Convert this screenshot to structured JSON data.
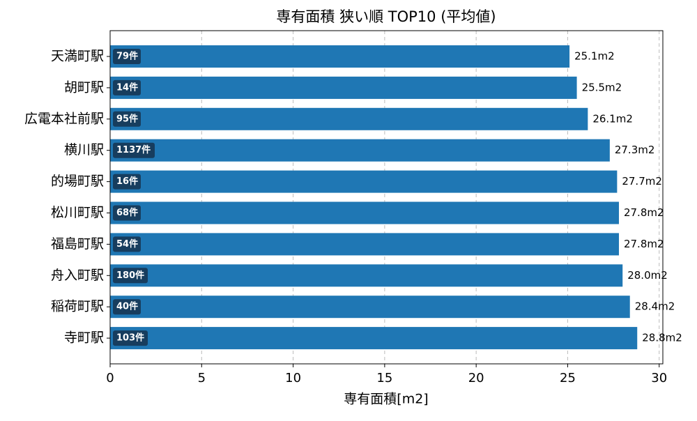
{
  "chart_data": {
    "type": "barh",
    "title": "専有面積 狭い順 TOP10 (平均値)",
    "x_label": "専有面積[m2]",
    "categories": [
      "天満町駅",
      "胡町駅",
      "広電本社前駅",
      "横川駅",
      "的場町駅",
      "松川町駅",
      "福島町駅",
      "舟入町駅",
      "稲荷町駅",
      "寺町駅"
    ],
    "values": [
      25.1,
      25.5,
      26.1,
      27.3,
      27.7,
      27.8,
      27.8,
      28.0,
      28.4,
      28.8
    ],
    "value_labels": [
      "25.1m2",
      "25.5m2",
      "26.1m2",
      "27.3m2",
      "27.7m2",
      "27.8m2",
      "27.8m2",
      "28.0m2",
      "28.4m2",
      "28.8m2"
    ],
    "count_labels": [
      "79件",
      "14件",
      "95件",
      "1137件",
      "16件",
      "68件",
      "54件",
      "180件",
      "40件",
      "103件"
    ],
    "color": "#1f77b4",
    "badge_color": "#173d5e",
    "xlim": [
      0,
      30.2
    ],
    "xticks": [
      0,
      5,
      10,
      15,
      20,
      25,
      30
    ],
    "grid": true
  }
}
